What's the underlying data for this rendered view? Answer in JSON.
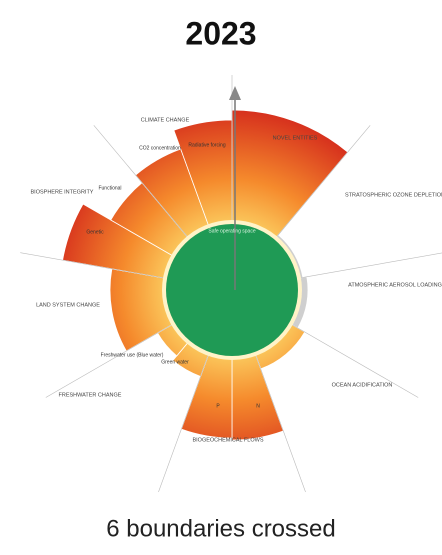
{
  "header": {
    "title": "2023"
  },
  "footer": {
    "text": "6 boundaries crossed"
  },
  "center": {
    "label": "Safe operating space"
  },
  "boundaries": [
    {
      "label": "NOVEL ENTITIES"
    },
    {
      "label": "STRATOSPHERIC OZONE DEPLETION"
    },
    {
      "label": "ATMOSPHERIC AEROSOL LOADING"
    },
    {
      "label": "OCEAN ACIDIFICATION"
    },
    {
      "label": "BIOGEOCHEMICAL FLOWS",
      "parts": [
        "P",
        "N"
      ]
    },
    {
      "label": "FRESHWATER CHANGE",
      "parts": [
        "Freshwater use (Blue water)",
        "Green water"
      ]
    },
    {
      "label": "LAND SYSTEM CHANGE"
    },
    {
      "label": "BIOSPHERE INTEGRITY",
      "parts": [
        "Genetic",
        "Functional"
      ]
    },
    {
      "label": "CLIMATE CHANGE",
      "parts": [
        "CO2 concentration",
        "Radiative forcing"
      ]
    }
  ]
}
